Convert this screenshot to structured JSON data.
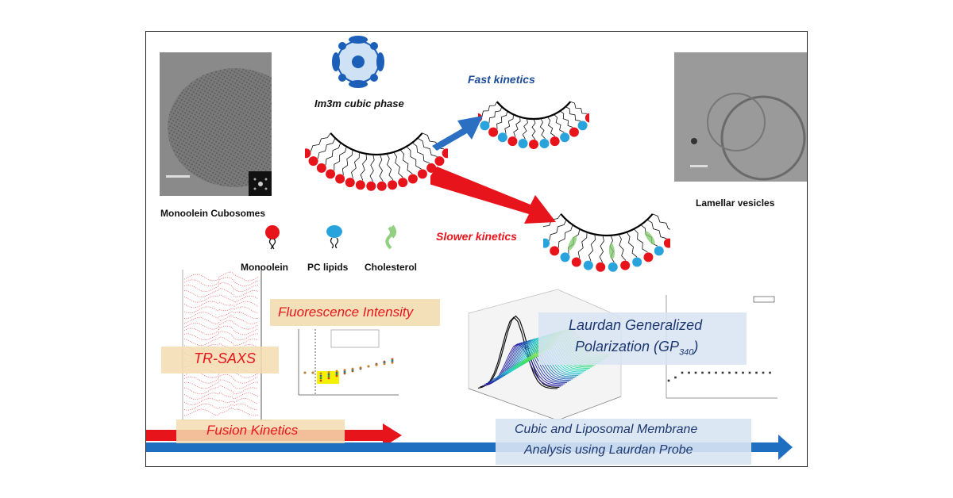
{
  "top": {
    "left_image_caption": "Monoolein Cubosomes",
    "right_image_caption": "Lamellar vesicles",
    "phase_label": "Im3m cubic phase",
    "fast_kinetics": "Fast kinetics",
    "slower_kinetics": "Slower kinetics"
  },
  "legend": [
    {
      "label": "Monoolein",
      "color": "#e8141c"
    },
    {
      "label": "PC lipids",
      "color": "#29a3dc"
    },
    {
      "label": "Cholesterol",
      "color": "#7ec86a"
    }
  ],
  "panels": {
    "trsaxs_label": "TR-SAXS",
    "fluorescence_label": "Fluorescence Intensity",
    "laurdan_line1": "Laurdan Generalized",
    "laurdan_line2": "Polarization (GP",
    "laurdan_sub": "340",
    "laurdan_close": ")"
  },
  "bottom": {
    "fusion_label": "Fusion Kinetics",
    "membrane_line1": "Cubic and Liposomal Membrane",
    "membrane_line2": "Analysis using Laurdan Probe"
  },
  "colors": {
    "red": "#e8141c",
    "blue": "#1f6fc0",
    "box_tan": "#f3ddb0",
    "box_blue": "#d8e4f3"
  }
}
